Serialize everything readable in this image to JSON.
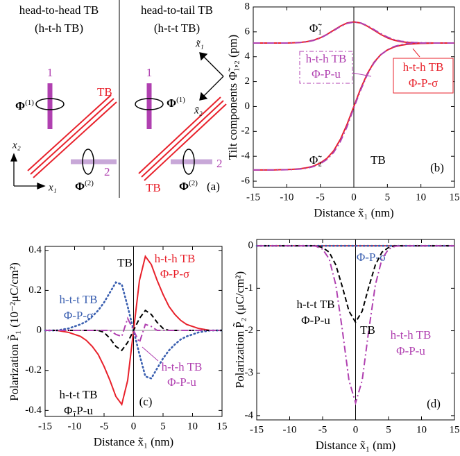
{
  "diagram": {
    "left": {
      "title": [
        "head-to-head TB",
        "(h-t-h TB)"
      ],
      "tb": "TB",
      "bar1": "1",
      "bar2": "2",
      "phi1": {
        "symbol": "Φ",
        "sup": "(1)"
      },
      "phi2": {
        "symbol": "Φ",
        "sup": "(2)"
      },
      "axis_x2": "x₂",
      "axis_x1": "x₁"
    },
    "right": {
      "title": [
        "head-to-tail TB",
        "(h-t-t TB)"
      ],
      "tb": "TB",
      "bar1": "1",
      "bar2": "2",
      "phi1": {
        "symbol": "Φ",
        "sup": "(1)"
      },
      "phi2": {
        "symbol": "Φ",
        "sup": "(2)"
      },
      "axis_x1": "x̃₁",
      "axis_x2": "x̃₂"
    },
    "panel_label": "(a)"
  },
  "chart_data": [
    {
      "type": "line",
      "xlabel": "Distance  x̃₁  (nm)",
      "ylabel": "Tilt components  Φ̃₁,₂ (pm)",
      "xlim": [
        -15,
        15
      ],
      "xticks": [
        -15,
        -10,
        -5,
        0,
        5,
        10,
        15
      ],
      "ylim": [
        -6.5,
        8
      ],
      "yticks": [
        -6,
        -4,
        -2,
        0,
        2,
        4,
        6,
        8
      ],
      "vline": 0,
      "x": [
        -15,
        -14,
        -13,
        -12,
        -11,
        -10,
        -9,
        -8,
        -7,
        -6,
        -5,
        -4,
        -3,
        -2,
        -1,
        0,
        1,
        2,
        3,
        4,
        5,
        6,
        7,
        8,
        9,
        10,
        11,
        12,
        13,
        14,
        15
      ],
      "series": [
        {
          "name": [
            "h-t-h TB",
            "Φ-P-σ"
          ],
          "color": "#e8212b",
          "dash": "solid",
          "values": [
            5.1,
            5.1,
            5.1,
            5.1,
            5.1,
            5.1,
            5.12,
            5.15,
            5.21,
            5.33,
            5.52,
            5.8,
            6.13,
            6.46,
            6.71,
            6.8,
            6.71,
            6.46,
            6.13,
            5.8,
            5.52,
            5.33,
            5.21,
            5.15,
            5.12,
            5.1,
            5.1,
            5.1,
            5.1,
            5.1,
            5.1
          ]
        },
        {
          "name": [
            "h-t-h TB",
            "Φ-P-u"
          ],
          "color": "#b040b0",
          "dash": "dashdot",
          "values": [
            5.1,
            5.1,
            5.1,
            5.1,
            5.1,
            5.1,
            5.11,
            5.14,
            5.2,
            5.31,
            5.5,
            5.78,
            6.1,
            6.43,
            6.68,
            6.78,
            6.72,
            6.5,
            6.18,
            5.86,
            5.58,
            5.38,
            5.25,
            5.18,
            5.14,
            5.12,
            5.11,
            5.1,
            5.1,
            5.1,
            5.1
          ]
        },
        {
          "color": "#e8212b",
          "dash": "solid",
          "values": [
            -5.1,
            -5.1,
            -5.1,
            -5.1,
            -5.08,
            -5.07,
            -5.04,
            -5.0,
            -4.92,
            -4.78,
            -4.54,
            -4.16,
            -3.55,
            -2.63,
            -1.42,
            0,
            1.42,
            2.63,
            3.55,
            4.16,
            4.54,
            4.78,
            4.92,
            5.0,
            5.04,
            5.07,
            5.08,
            5.1,
            5.1,
            5.1,
            5.1
          ]
        },
        {
          "color": "#b040b0",
          "dash": "dashdot",
          "values": [
            -5.1,
            -5.1,
            -5.1,
            -5.1,
            -5.09,
            -5.08,
            -5.06,
            -5.02,
            -4.95,
            -4.82,
            -4.6,
            -4.25,
            -3.68,
            -2.8,
            -1.6,
            -0.1,
            1.3,
            2.55,
            3.5,
            4.15,
            4.55,
            4.82,
            4.96,
            5.05,
            5.09,
            5.1,
            5.1,
            5.1,
            5.1,
            5.1,
            5.1
          ]
        }
      ],
      "annotations": [
        {
          "text": "Φ̃₁",
          "color": "#000"
        },
        {
          "text": "Φ̃₂",
          "color": "#000"
        },
        {
          "text": "TB",
          "color": "#000"
        },
        {
          "text": "(b)",
          "color": "#000"
        }
      ]
    },
    {
      "type": "line",
      "xlabel": "Distance  x̃₁  (nm)",
      "ylabel": "Polarization  P̃₁  (10⁻²μC/cm²)",
      "xlim": [
        -15,
        15
      ],
      "xticks": [
        -15,
        -10,
        -5,
        0,
        5,
        10,
        15
      ],
      "ylim": [
        -0.43,
        0.42
      ],
      "yticks": [
        -0.4,
        -0.2,
        0,
        0.2,
        0.4
      ],
      "vline": 0,
      "hline": 0,
      "x": [
        -15,
        -14,
        -13,
        -12,
        -11,
        -10,
        -9,
        -8,
        -7,
        -6,
        -5,
        -4,
        -3,
        -2,
        -1,
        0,
        1,
        2,
        3,
        4,
        5,
        6,
        7,
        8,
        9,
        10,
        11,
        12,
        13,
        14,
        15
      ],
      "series": [
        {
          "name": [
            "h-t-h TB",
            "Φ-P-σ"
          ],
          "color": "#e8212b",
          "dash": "solid",
          "values": [
            0,
            0,
            0,
            -0.005,
            -0.01,
            -0.02,
            -0.03,
            -0.05,
            -0.08,
            -0.12,
            -0.18,
            -0.25,
            -0.33,
            -0.37,
            -0.25,
            0,
            0.25,
            0.37,
            0.33,
            0.25,
            0.18,
            0.12,
            0.08,
            0.05,
            0.03,
            0.02,
            0.01,
            0.005,
            0,
            0,
            0
          ]
        },
        {
          "name": [
            "h-t-t TB",
            "Φ-P-σ"
          ],
          "color": "#3a5fb0",
          "dash": "dotted",
          "values": [
            0,
            0,
            0,
            0.005,
            0.01,
            0.02,
            0.03,
            0.045,
            0.07,
            0.1,
            0.14,
            0.19,
            0.24,
            0.23,
            0.12,
            0,
            -0.12,
            -0.23,
            -0.24,
            -0.19,
            -0.14,
            -0.1,
            -0.07,
            -0.045,
            -0.03,
            -0.02,
            -0.01,
            -0.005,
            0,
            0,
            0
          ]
        },
        {
          "name": [
            "h-t-t TB",
            "Φ-P-u"
          ],
          "color": "#000000",
          "dash": "dashed",
          "values": [
            0,
            0,
            0,
            0,
            0,
            0,
            0,
            0,
            0,
            0,
            -0.01,
            -0.04,
            -0.08,
            -0.1,
            -0.06,
            0,
            0.06,
            0.1,
            0.08,
            0.04,
            0.01,
            0,
            0,
            0,
            0,
            0,
            0,
            0,
            0,
            0,
            0
          ]
        },
        {
          "name": [
            "h-t-h TB",
            "Φ-P-u"
          ],
          "color": "#b040b0",
          "dash": "dashdot",
          "values": [
            0,
            0,
            0,
            0,
            0,
            0,
            0,
            0,
            0,
            0,
            0,
            0,
            -0.02,
            -0.03,
            0.06,
            0,
            -0.06,
            0.03,
            0.02,
            0,
            0,
            0,
            0,
            0,
            0,
            0,
            0,
            0,
            0,
            0,
            0
          ]
        }
      ],
      "annotations": [
        {
          "text": "TB",
          "color": "#000"
        },
        {
          "text": "(c)",
          "color": "#000"
        }
      ]
    },
    {
      "type": "line",
      "xlabel": "Distance  x̃₁  (nm)",
      "ylabel": "Polarization  P̃₂  (μC/cm²)",
      "xlim": [
        -15,
        15
      ],
      "xticks": [
        -15,
        -10,
        -5,
        0,
        5,
        10,
        15
      ],
      "ylim": [
        -4.1,
        0.15
      ],
      "yticks": [
        -4,
        -3,
        -2,
        -1,
        0
      ],
      "vline": 0,
      "x": [
        -15,
        -14,
        -13,
        -12,
        -11,
        -10,
        -9,
        -8,
        -7,
        -6,
        -5,
        -4,
        -3,
        -2,
        -1,
        0,
        1,
        2,
        3,
        4,
        5,
        6,
        7,
        8,
        9,
        10,
        11,
        12,
        13,
        14,
        15
      ],
      "series": [
        {
          "color": "#e8212b",
          "dash": "solid",
          "values": [
            0,
            0,
            0,
            0,
            0,
            0,
            0,
            0,
            0,
            0,
            0,
            0,
            0,
            0,
            0,
            0,
            0,
            0,
            0,
            0,
            0,
            0,
            0,
            0,
            0,
            0,
            0,
            0,
            0,
            0,
            0
          ]
        },
        {
          "name": [
            "Φ-P-σ"
          ],
          "color": "#3a5fb0",
          "dash": "dotted",
          "values": [
            0,
            0,
            0,
            0,
            0,
            0,
            0,
            0,
            0,
            0,
            0,
            0,
            0,
            0,
            0,
            0,
            0,
            0,
            0,
            0,
            0,
            0,
            0,
            0,
            0,
            0,
            0,
            0,
            0,
            0,
            0
          ]
        },
        {
          "name": [
            "h-t-t TB",
            "Φ-P-u"
          ],
          "color": "#000000",
          "dash": "dashed",
          "values": [
            0,
            0,
            0,
            0,
            0,
            0,
            0,
            0,
            0,
            0,
            -0.04,
            -0.15,
            -0.45,
            -0.97,
            -1.54,
            -1.8,
            -1.54,
            -0.97,
            -0.45,
            -0.15,
            -0.04,
            0,
            0,
            0,
            0,
            0,
            0,
            0,
            0,
            0,
            0
          ]
        },
        {
          "name": [
            "h-t-h TB",
            "Φ-P-u"
          ],
          "color": "#b040b0",
          "dash": "dashdot",
          "values": [
            0,
            0,
            0,
            0,
            0,
            0,
            0,
            0,
            0,
            -0.01,
            -0.08,
            -0.31,
            -0.92,
            -1.99,
            -3.17,
            -3.7,
            -3.17,
            -1.99,
            -0.92,
            -0.31,
            -0.08,
            -0.01,
            0,
            0,
            0,
            0,
            0,
            0,
            0,
            0,
            0
          ]
        }
      ],
      "annotations": [
        {
          "text": "TB",
          "color": "#000"
        },
        {
          "text": "(d)",
          "color": "#000"
        }
      ]
    }
  ]
}
